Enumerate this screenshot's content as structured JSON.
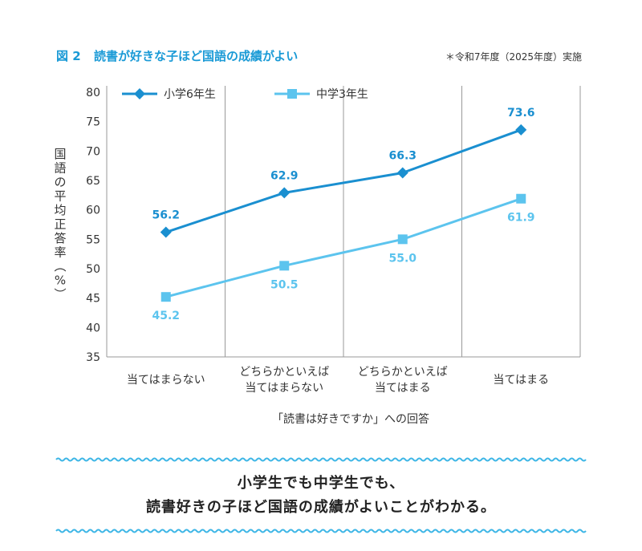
{
  "figure": {
    "number": "図 2",
    "title": "読書が好きな子ほど国語の成績がよい",
    "note": "＊令和7年度（2025年度）実施"
  },
  "colors": {
    "accent": "#1a9ad6",
    "series_elementary": "#1a8fd0",
    "series_junior": "#5cc4ee",
    "grid": "#999999",
    "wave": "#3eb6e6"
  },
  "conclusion": {
    "line1": "小学生でも中学生でも、",
    "line2": "読書好きの子ほど国語の成績がよいことがわかる。"
  },
  "chart_data": {
    "type": "line",
    "xlabel": "「読書は好きですか」への回答",
    "ylabel": "国語の平均正答率（%）",
    "ylim": [
      35,
      80
    ],
    "yticks": [
      35,
      40,
      45,
      50,
      55,
      60,
      65,
      70,
      75,
      80
    ],
    "categories": [
      [
        "当てはまらない"
      ],
      [
        "どちらかといえば",
        "当てはまらない"
      ],
      [
        "どちらかといえば",
        "当てはまる"
      ],
      [
        "当てはまる"
      ]
    ],
    "series": [
      {
        "name": "小学6年生",
        "marker": "diamond",
        "values": [
          56.2,
          62.9,
          66.3,
          73.6
        ],
        "labels": [
          "56.2",
          "62.9",
          "66.3",
          "73.6"
        ],
        "label_position": "above"
      },
      {
        "name": "中学3年生",
        "marker": "square",
        "values": [
          45.2,
          50.5,
          55.0,
          61.9
        ],
        "labels": [
          "45.2",
          "50.5",
          "55.0",
          "61.9"
        ],
        "label_position": "below"
      }
    ],
    "grid": "vertical category separators",
    "legend": "top-left"
  }
}
